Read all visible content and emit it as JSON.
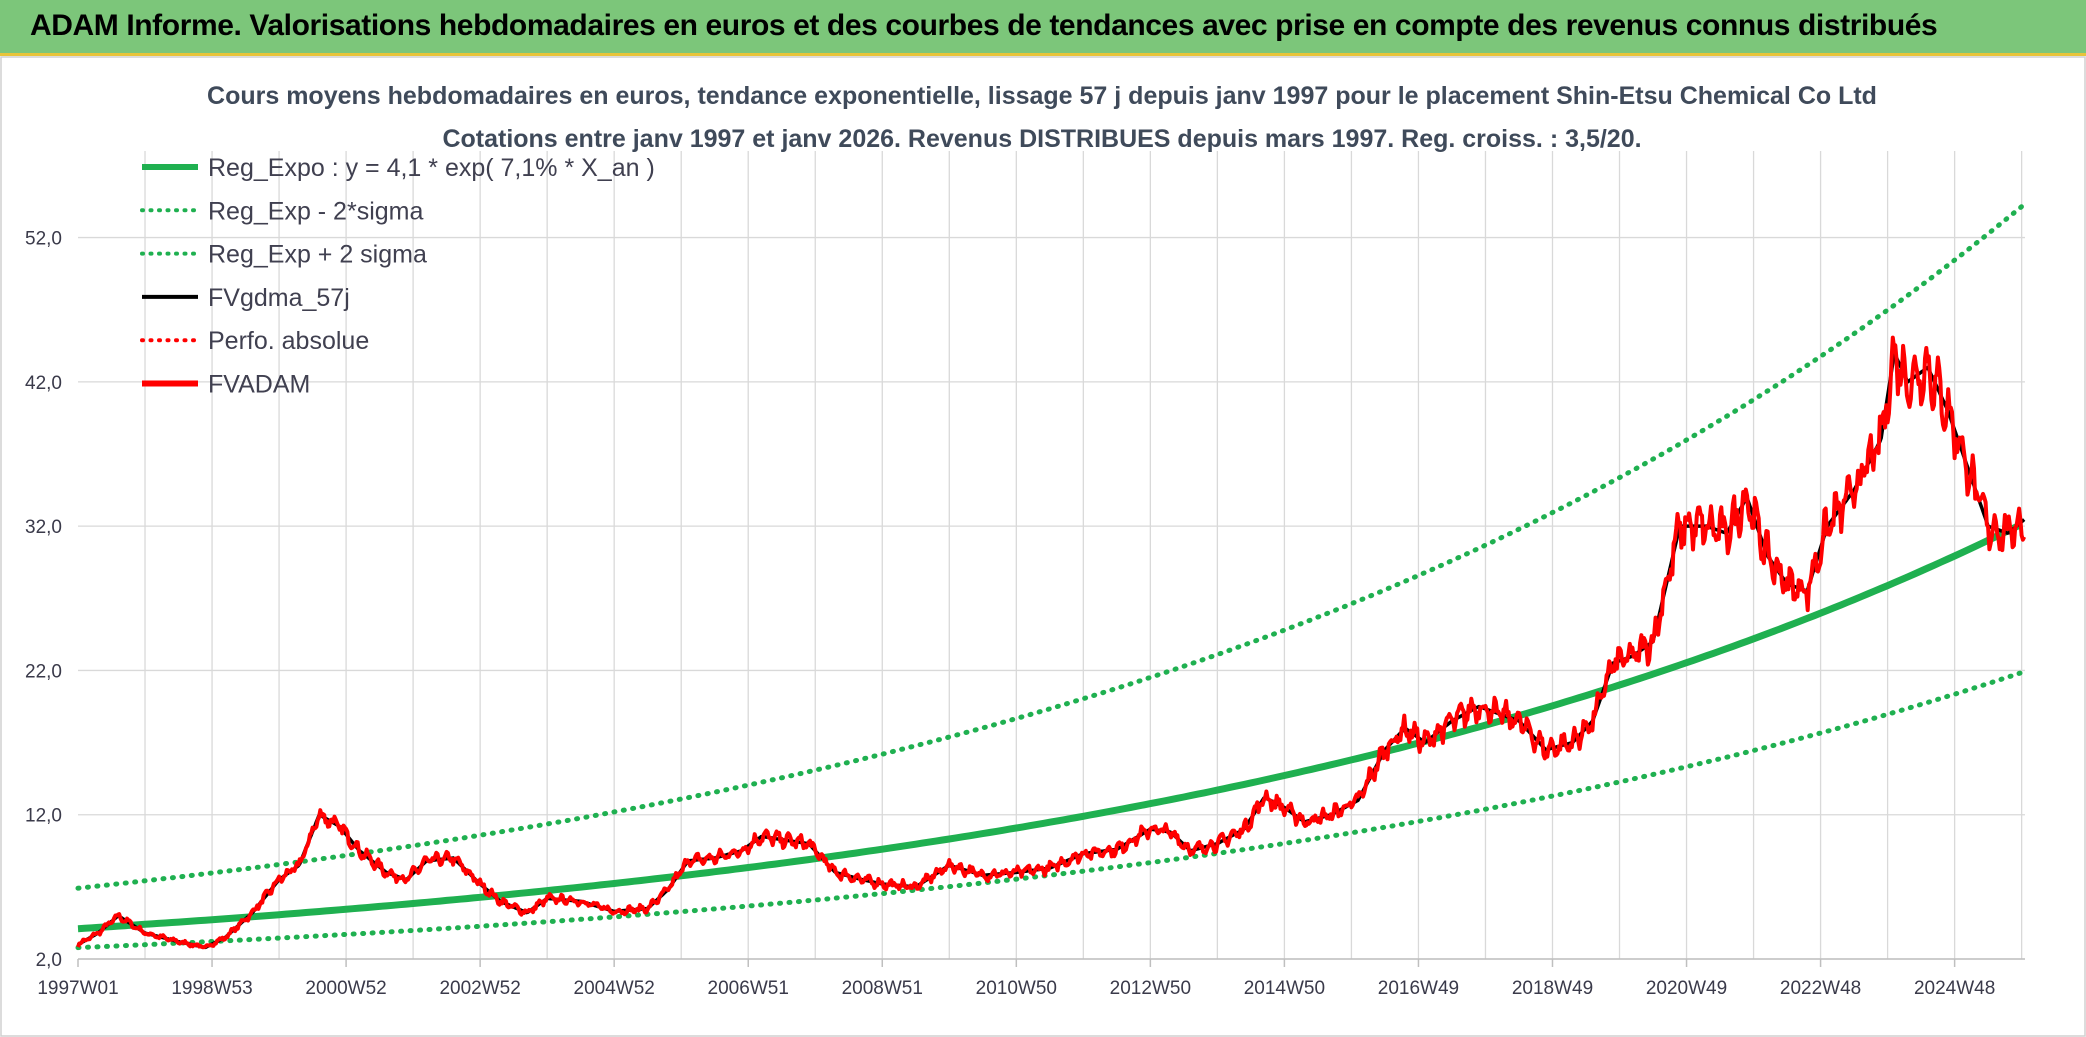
{
  "banner": {
    "text": "ADAM Informe. Valorisations hebdomadaires en euros et des courbes de tendances avec prise en compte des revenus connus distribués"
  },
  "colors": {
    "banner_bg": "#7cc67a",
    "trend": "#1fb050",
    "fv": "#000000",
    "adam": "#ff0000"
  },
  "chart_data": {
    "type": "line",
    "title": "Cours moyens hebdomadaires en euros, tendance exponentielle, lissage 57 j depuis janv 1997 pour le placement Shin-Etsu Chemical Co Ltd",
    "subtitle": "Cotations entre janv 1997 et janv 2026. Revenus DISTRIBUES depuis mars 1997. Reg. croiss. : 3,5/20.",
    "xlabel": "",
    "ylabel": "",
    "x_range": [
      1997.0,
      2026.05
    ],
    "ylim": [
      2,
      58
    ],
    "y_ticks": [
      2,
      12,
      22,
      32,
      42,
      52
    ],
    "y_tick_labels": [
      "2,0",
      "12,0",
      "22,0",
      "32,0",
      "42,0",
      "52,0"
    ],
    "x_ticks": [
      {
        "label": "1997W01",
        "x": 1997.0
      },
      {
        "label": "1998W53",
        "x": 1999.0
      },
      {
        "label": "2000W52",
        "x": 2001.0
      },
      {
        "label": "2002W52",
        "x": 2003.0
      },
      {
        "label": "2004W52",
        "x": 2005.0
      },
      {
        "label": "2006W51",
        "x": 2007.0
      },
      {
        "label": "2008W51",
        "x": 2009.0
      },
      {
        "label": "2010W50",
        "x": 2011.0
      },
      {
        "label": "2012W50",
        "x": 2013.0
      },
      {
        "label": "2014W50",
        "x": 2015.0
      },
      {
        "label": "2016W49",
        "x": 2017.0
      },
      {
        "label": "2018W49",
        "x": 2019.0
      },
      {
        "label": "2020W49",
        "x": 2021.0
      },
      {
        "label": "2022W48",
        "x": 2023.0
      },
      {
        "label": "2024W48",
        "x": 2025.0
      }
    ],
    "legend_position": "top-left",
    "legend": [
      {
        "label": "Reg_Expo : y = 4,1 * exp( 7,1% *  X_an )",
        "style": "solid-thick",
        "color": "#1fb050"
      },
      {
        "label": "Reg_Exp - 2*sigma",
        "style": "dotted",
        "color": "#1fb050"
      },
      {
        "label": "Reg_Exp + 2 sigma",
        "style": "dotted",
        "color": "#1fb050"
      },
      {
        "label": "FVgdma_57j",
        "style": "solid",
        "color": "#000000"
      },
      {
        "label": "Perfo. absolue",
        "style": "dotted",
        "color": "#ff0000"
      },
      {
        "label": "FVADAM",
        "style": "solid-thick",
        "color": "#ff0000"
      }
    ],
    "series": [
      {
        "name": "Reg_Expo",
        "formula": "4.1*exp(0.071*(x-1997))",
        "x": [
          1997,
          2001,
          2005,
          2009,
          2013,
          2017,
          2021,
          2026
        ],
        "values": [
          4.1,
          5.5,
          7.3,
          9.0,
          11.6,
          16.8,
          22.4,
          32.3
        ]
      },
      {
        "name": "Reg_Exp - 2*sigma",
        "x": [
          1997,
          2001,
          2005,
          2009,
          2013,
          2017,
          2021,
          2026
        ],
        "values": [
          2.8,
          3.5,
          4.5,
          6.0,
          8.0,
          10.8,
          13.8,
          19.7
        ]
      },
      {
        "name": "Reg_Exp + 2 sigma",
        "x": [
          1997,
          2001,
          2005,
          2009,
          2013,
          2017,
          2021,
          2026
        ],
        "values": [
          7.0,
          9.4,
          12.4,
          16.5,
          22.1,
          29.5,
          38.9,
          54.5
        ]
      },
      {
        "name": "FVADAM",
        "x": [
          1997.0,
          1997.3,
          1997.6,
          1998.0,
          1998.5,
          1998.9,
          1999.2,
          1999.6,
          2000.0,
          2000.3,
          2000.6,
          2000.9,
          2001.2,
          2001.6,
          2001.9,
          2002.2,
          2002.6,
          2003.0,
          2003.3,
          2003.7,
          2004.0,
          2004.5,
          2005.0,
          2005.5,
          2005.8,
          2006.1,
          2006.5,
          2006.9,
          2007.2,
          2007.6,
          2007.9,
          2008.3,
          2008.7,
          2009.0,
          2009.5,
          2010.0,
          2010.5,
          2011.0,
          2011.5,
          2012.0,
          2012.5,
          2013.0,
          2013.3,
          2013.6,
          2014.0,
          2014.4,
          2014.7,
          2015.0,
          2015.3,
          2015.7,
          2016.1,
          2016.5,
          2016.8,
          2017.1,
          2017.5,
          2017.9,
          2018.2,
          2018.5,
          2018.9,
          2019.3,
          2019.6,
          2019.9,
          2020.2,
          2020.5,
          2020.7,
          2020.9,
          2021.3,
          2021.6,
          2021.9,
          2022.2,
          2022.5,
          2022.8,
          2023.1,
          2023.5,
          2023.9,
          2024.1,
          2024.3,
          2024.6,
          2024.9,
          2025.2,
          2025.5,
          2025.8,
          2026.05
        ],
        "values": [
          3.0,
          3.8,
          5.0,
          3.8,
          3.2,
          2.8,
          3.5,
          5.2,
          7.5,
          8.5,
          12.0,
          11.2,
          9.5,
          8.0,
          7.5,
          8.8,
          9.0,
          7.2,
          6.0,
          5.2,
          6.2,
          6.0,
          5.3,
          5.5,
          6.8,
          8.8,
          9.0,
          9.5,
          10.5,
          10.2,
          10.0,
          8.0,
          7.5,
          7.2,
          7.0,
          8.5,
          7.8,
          8.0,
          8.3,
          9.3,
          9.6,
          11.0,
          10.8,
          9.5,
          10.0,
          11.0,
          13.2,
          12.5,
          11.5,
          12.0,
          13.0,
          16.5,
          18.0,
          17.0,
          18.5,
          19.5,
          19.0,
          18.5,
          16.5,
          17.0,
          18.5,
          22.5,
          23.0,
          24.0,
          28.0,
          32.0,
          32.0,
          31.5,
          34.0,
          30.0,
          28.0,
          27.5,
          32.0,
          34.5,
          38.0,
          44.0,
          42.0,
          43.0,
          40.0,
          36.0,
          32.0,
          31.5,
          32.5
        ]
      }
    ]
  }
}
